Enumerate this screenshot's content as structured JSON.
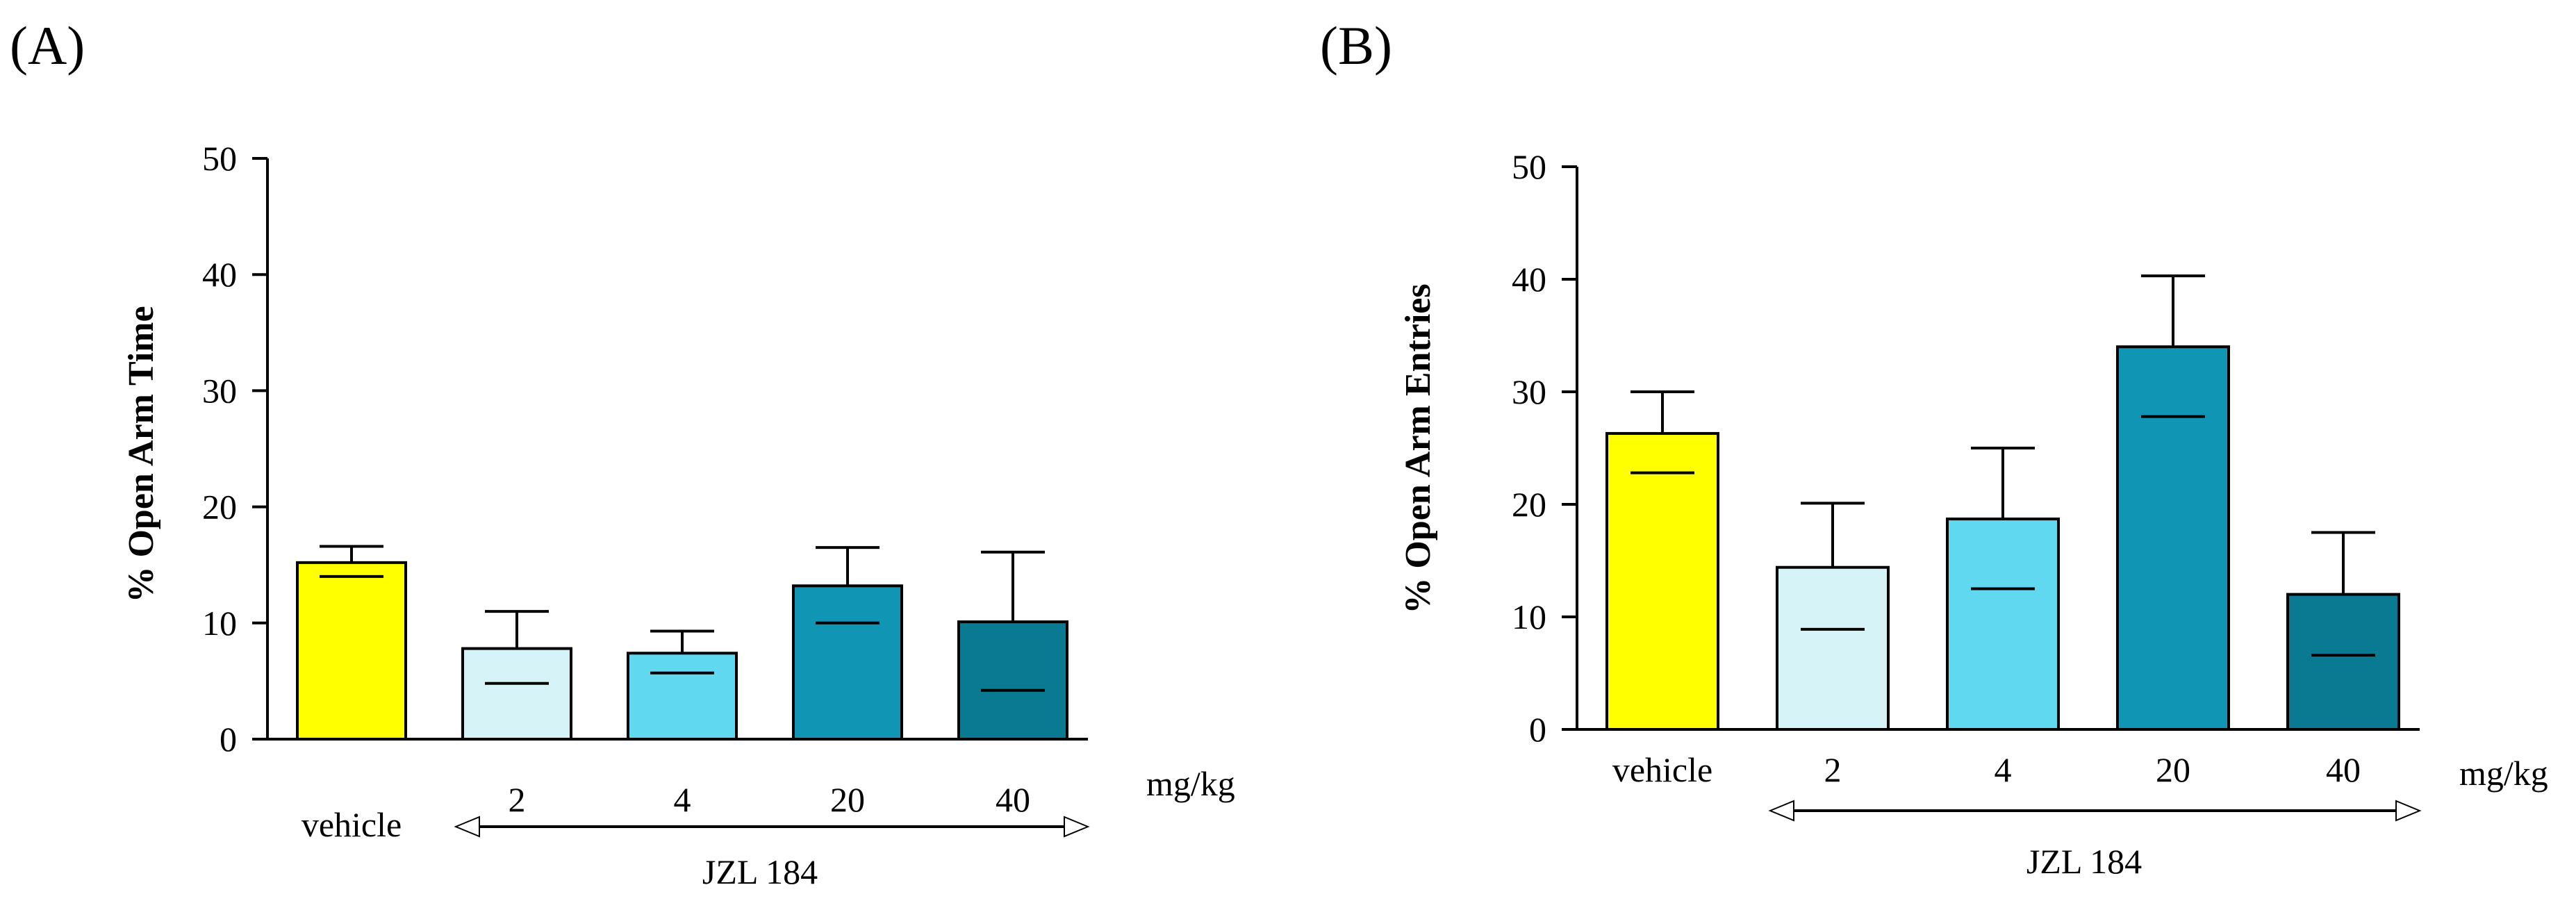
{
  "chart_data": [
    {
      "type": "bar",
      "panel_label": "(A)",
      "title": "",
      "ylabel": "%  Open Arm  Time",
      "xlabel": "",
      "ylim": [
        0,
        50
      ],
      "yticks": [
        0,
        10,
        20,
        30,
        40,
        50
      ],
      "categories": [
        "vehicle",
        "2",
        "4",
        "20",
        "40"
      ],
      "values": [
        15.2,
        7.8,
        7.4,
        13.2,
        10.1
      ],
      "error_low": [
        14.0,
        4.8,
        5.7,
        10.0,
        4.2
      ],
      "error_high": [
        16.6,
        11.0,
        9.3,
        16.5,
        16.1
      ],
      "colors": [
        "#FFFF00",
        "#D6F3F8",
        "#60D8F0",
        "#1195B5",
        "#0A7A93"
      ],
      "unit_label": "mg/kg",
      "group_label": "JZL 184",
      "group_span": [
        "2",
        "40"
      ]
    },
    {
      "type": "bar",
      "panel_label": "(B)",
      "title": "",
      "ylabel": "%  Open  Arm Entries",
      "xlabel": "",
      "ylim": [
        0,
        50
      ],
      "yticks": [
        0,
        10,
        20,
        30,
        40,
        50
      ],
      "categories": [
        "vehicle",
        "2",
        "4",
        "20",
        "40"
      ],
      "values": [
        26.3,
        14.4,
        18.7,
        34.0,
        12.0
      ],
      "error_low": [
        22.8,
        8.9,
        12.5,
        27.8,
        6.6
      ],
      "error_high": [
        30.0,
        20.1,
        25.0,
        40.3,
        17.5
      ],
      "colors": [
        "#FFFF00",
        "#D6F3F8",
        "#60D8F0",
        "#1195B5",
        "#0A7A93"
      ],
      "unit_label": "mg/kg",
      "group_label": "JZL 184",
      "group_span": [
        "2",
        "40"
      ]
    }
  ]
}
